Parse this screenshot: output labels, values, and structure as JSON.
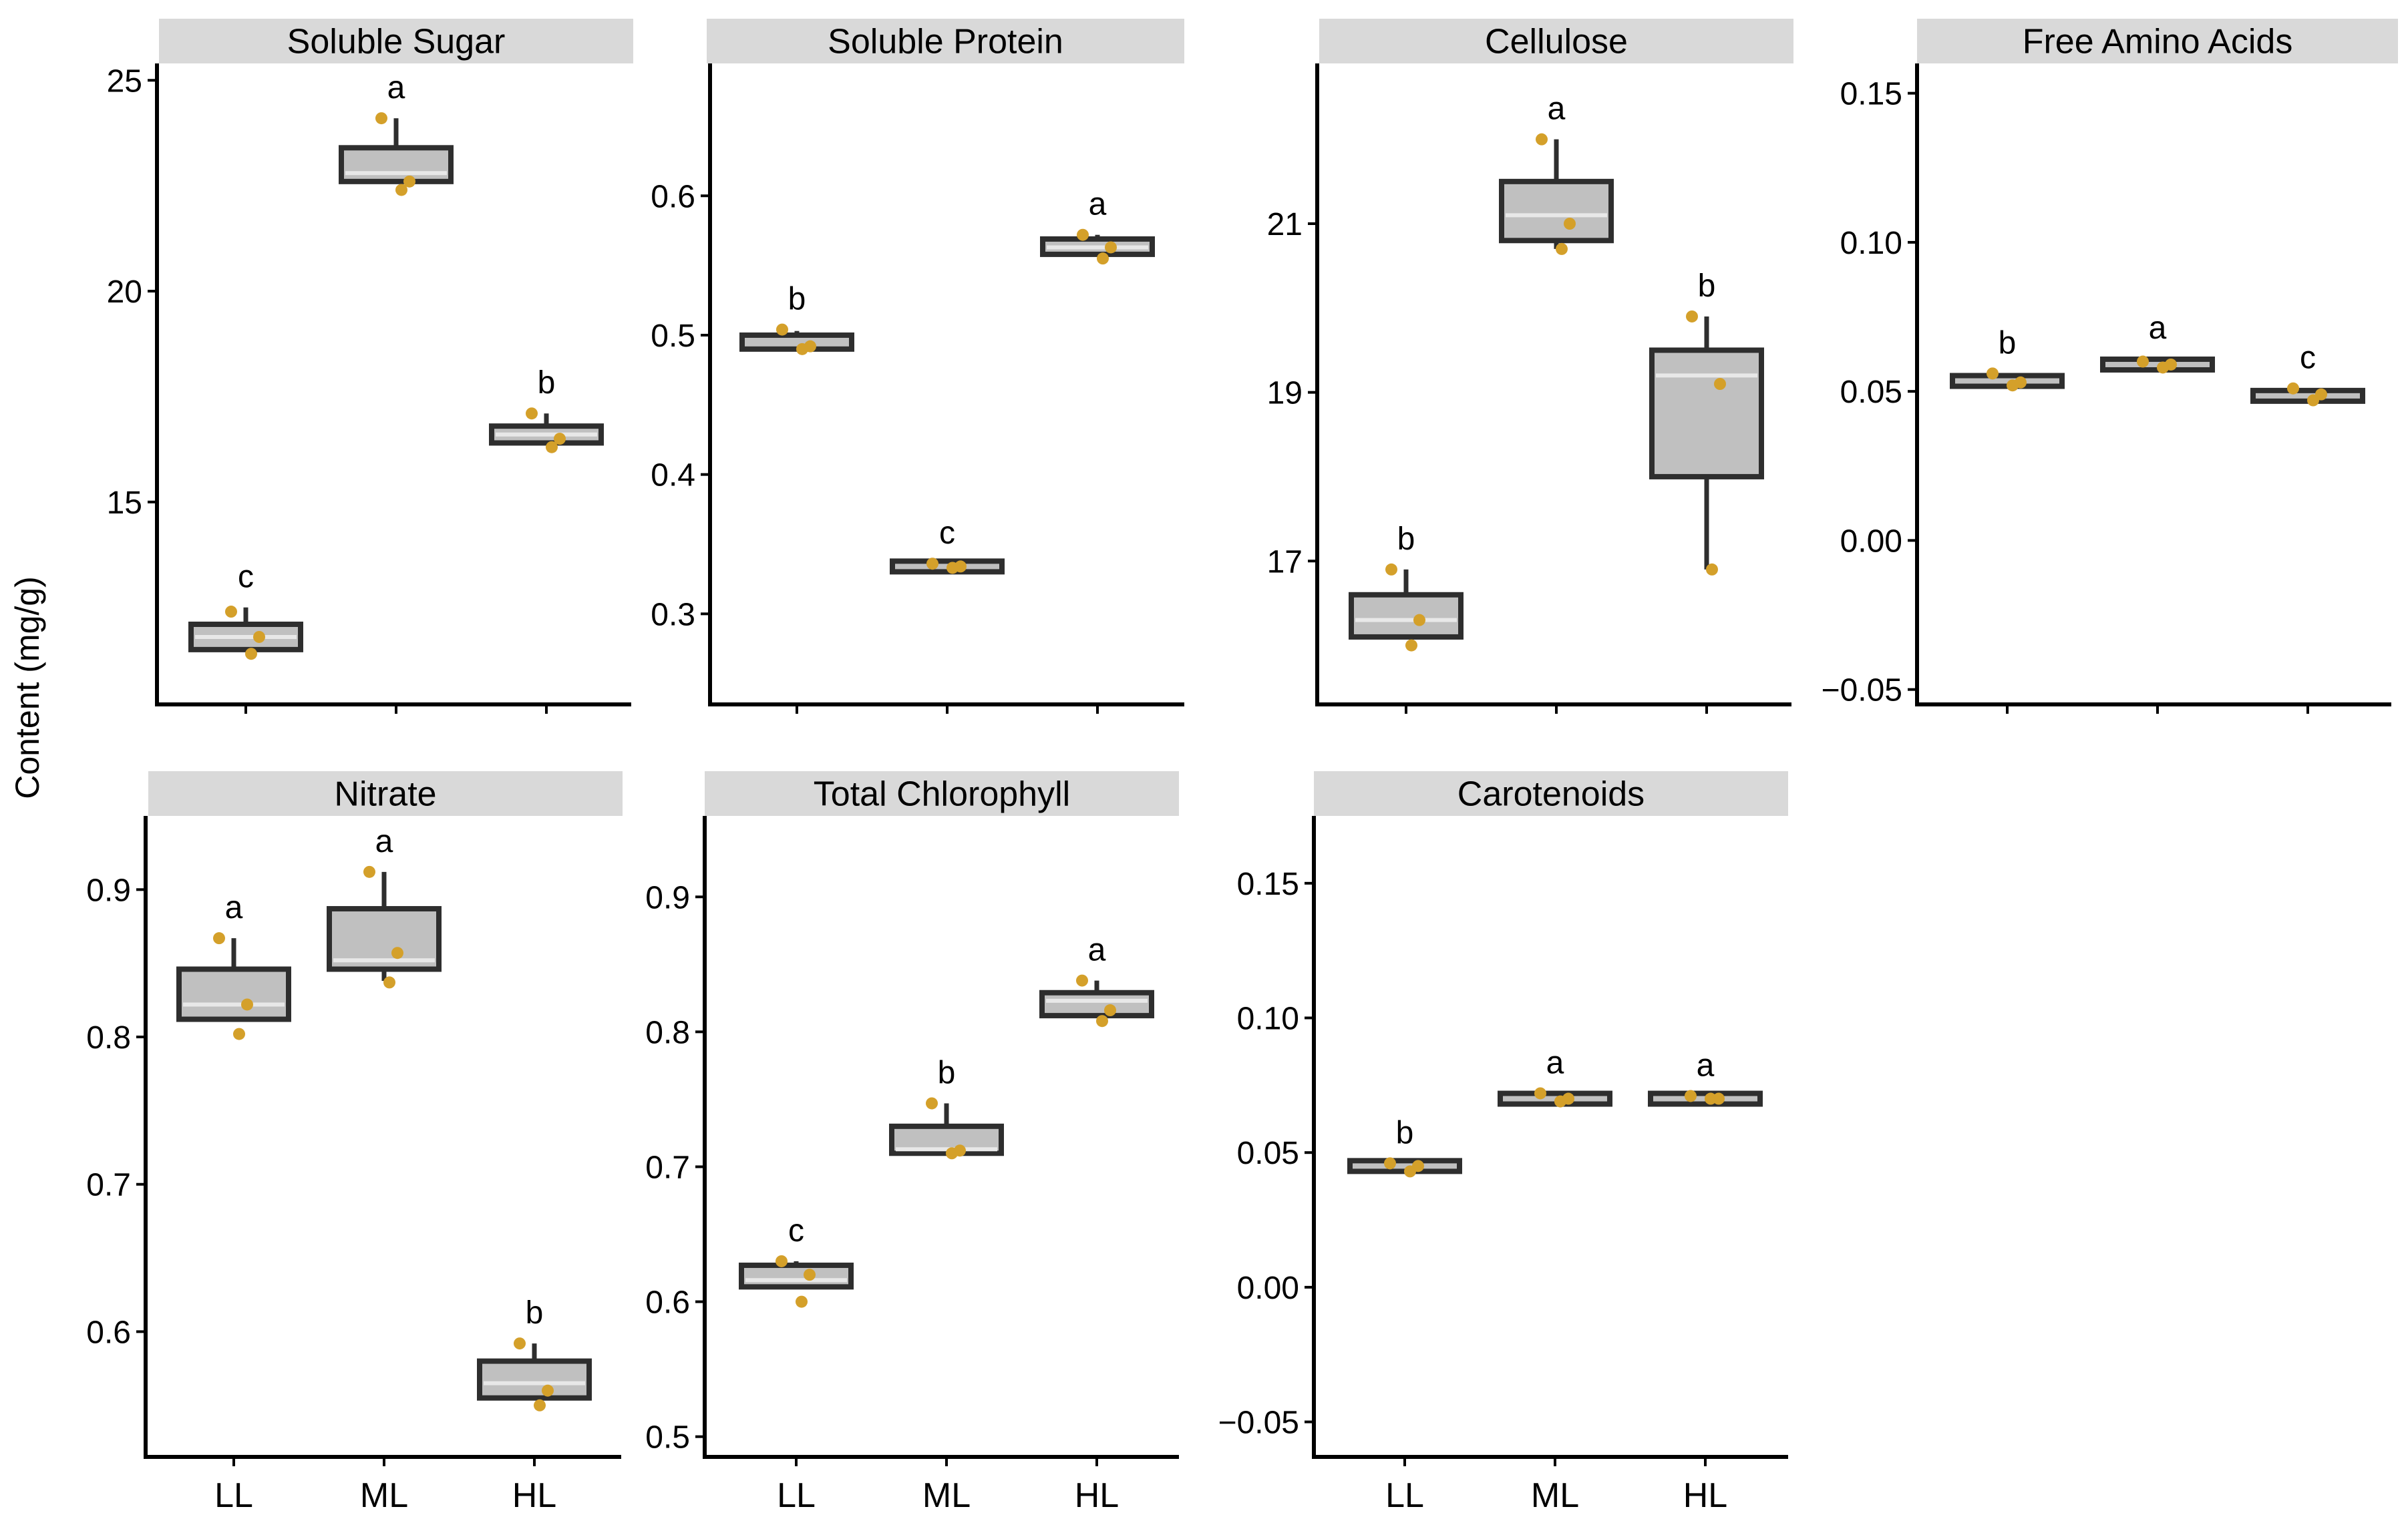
{
  "figure": {
    "y_axis_label": "Content (mg/g)",
    "colors": {
      "box_fill": "#c0c0c0",
      "box_stroke": "#2e2e2e",
      "median": "#e8e8e8",
      "point": "#d4a02a",
      "strip_fill": "#d9d9d9",
      "axis": "#000000"
    }
  },
  "chart_data": [
    {
      "type": "box",
      "title": "Soluble Sugar",
      "categories": [
        "LL",
        "ML",
        "HL"
      ],
      "show_x_labels": false,
      "y_ticks": [
        15,
        20,
        25
      ],
      "y_tick_labels": [
        "15",
        "20",
        "25"
      ],
      "ylim": [
        10.2,
        25.4
      ],
      "boxes": [
        {
          "category": "LL",
          "q1": 11.5,
          "median": 11.8,
          "q3": 12.1,
          "whisker_low": 11.5,
          "whisker_high": 12.5,
          "points": [
            12.4,
            11.8,
            11.4
          ],
          "letter": "c"
        },
        {
          "category": "ML",
          "q1": 22.6,
          "median": 22.8,
          "q3": 23.4,
          "whisker_low": 22.6,
          "whisker_high": 24.1,
          "points": [
            24.1,
            22.6,
            22.4
          ],
          "letter": "a"
        },
        {
          "category": "HL",
          "q1": 16.4,
          "median": 16.6,
          "q3": 16.8,
          "whisker_low": 16.4,
          "whisker_high": 17.1,
          "points": [
            17.1,
            16.5,
            16.3
          ],
          "letter": "b"
        }
      ]
    },
    {
      "type": "box",
      "title": "Soluble Protein",
      "categories": [
        "LL",
        "ML",
        "HL"
      ],
      "show_x_labels": false,
      "y_ticks": [
        0.3,
        0.4,
        0.5,
        0.6
      ],
      "y_tick_labels": [
        "0.3",
        "0.4",
        "0.5",
        "0.6"
      ],
      "ylim": [
        0.235,
        0.695
      ],
      "boxes": [
        {
          "category": "LL",
          "q1": 0.49,
          "median": 0.493,
          "q3": 0.5,
          "whisker_low": 0.49,
          "whisker_high": 0.503,
          "points": [
            0.504,
            0.492,
            0.49
          ],
          "letter": "b"
        },
        {
          "category": "ML",
          "q1": 0.332,
          "median": 0.334,
          "q3": 0.336,
          "whisker_low": 0.332,
          "whisker_high": 0.336,
          "points": [
            0.336,
            0.334,
            0.333
          ],
          "letter": "c"
        },
        {
          "category": "HL",
          "q1": 0.558,
          "median": 0.563,
          "q3": 0.569,
          "whisker_low": 0.558,
          "whisker_high": 0.572,
          "points": [
            0.572,
            0.563,
            0.555
          ],
          "letter": "a"
        }
      ]
    },
    {
      "type": "box",
      "title": "Cellulose",
      "categories": [
        "LL",
        "ML",
        "HL"
      ],
      "show_x_labels": false,
      "y_ticks": [
        17,
        19,
        21
      ],
      "y_tick_labels": [
        "17",
        "19",
        "21"
      ],
      "ylim": [
        15.3,
        22.9
      ],
      "boxes": [
        {
          "category": "LL",
          "q1": 16.1,
          "median": 16.3,
          "q3": 16.6,
          "whisker_low": 16.1,
          "whisker_high": 16.9,
          "points": [
            16.9,
            16.3,
            16.0
          ],
          "letter": "b"
        },
        {
          "category": "ML",
          "q1": 20.8,
          "median": 21.1,
          "q3": 21.5,
          "whisker_low": 20.7,
          "whisker_high": 22.0,
          "points": [
            22.0,
            21.0,
            20.7
          ],
          "letter": "a"
        },
        {
          "category": "HL",
          "q1": 18.0,
          "median": 19.2,
          "q3": 19.5,
          "whisker_low": 16.9,
          "whisker_high": 19.9,
          "points": [
            19.9,
            19.1,
            16.9
          ],
          "letter": "b"
        }
      ]
    },
    {
      "type": "box",
      "title": "Free Amino Acids",
      "categories": [
        "LL",
        "ML",
        "HL"
      ],
      "show_x_labels": false,
      "y_ticks": [
        -0.05,
        0.0,
        0.05,
        0.1,
        0.15
      ],
      "y_tick_labels": [
        "−0.05",
        "0.00",
        "0.05",
        "0.10",
        "0.15"
      ],
      "ylim": [
        -0.055,
        0.16
      ],
      "boxes": [
        {
          "category": "LL",
          "q1": 0.052,
          "median": 0.053,
          "q3": 0.055,
          "whisker_low": 0.052,
          "whisker_high": 0.056,
          "points": [
            0.056,
            0.053,
            0.052
          ],
          "letter": "b"
        },
        {
          "category": "ML",
          "q1": 0.058,
          "median": 0.059,
          "q3": 0.06,
          "whisker_low": 0.058,
          "whisker_high": 0.061,
          "points": [
            0.06,
            0.059,
            0.058
          ],
          "letter": "a"
        },
        {
          "category": "HL",
          "q1": 0.047,
          "median": 0.048,
          "q3": 0.05,
          "whisker_low": 0.047,
          "whisker_high": 0.051,
          "points": [
            0.051,
            0.049,
            0.047
          ],
          "letter": "c"
        }
      ]
    },
    {
      "type": "box",
      "title": "Nitrate",
      "categories": [
        "LL",
        "ML",
        "HL"
      ],
      "show_x_labels": true,
      "y_ticks": [
        0.6,
        0.7,
        0.8,
        0.9
      ],
      "y_tick_labels": [
        "0.6",
        "0.7",
        "0.8",
        "0.9"
      ],
      "ylim": [
        0.515,
        0.95
      ],
      "boxes": [
        {
          "category": "LL",
          "q1": 0.812,
          "median": 0.822,
          "q3": 0.846,
          "whisker_low": 0.812,
          "whisker_high": 0.867,
          "points": [
            0.867,
            0.822,
            0.802
          ],
          "letter": "a"
        },
        {
          "category": "ML",
          "q1": 0.846,
          "median": 0.852,
          "q3": 0.887,
          "whisker_low": 0.838,
          "whisker_high": 0.912,
          "points": [
            0.912,
            0.857,
            0.837
          ],
          "letter": "a"
        },
        {
          "category": "HL",
          "q1": 0.555,
          "median": 0.565,
          "q3": 0.58,
          "whisker_low": 0.555,
          "whisker_high": 0.592,
          "points": [
            0.592,
            0.56,
            0.55
          ],
          "letter": "b"
        }
      ]
    },
    {
      "type": "box",
      "title": "Total Chlorophyll",
      "categories": [
        "LL",
        "ML",
        "HL"
      ],
      "show_x_labels": true,
      "y_ticks": [
        0.5,
        0.6,
        0.7,
        0.8,
        0.9
      ],
      "y_tick_labels": [
        "0.5",
        "0.6",
        "0.7",
        "0.8",
        "0.9"
      ],
      "ylim": [
        0.485,
        0.96
      ],
      "boxes": [
        {
          "category": "LL",
          "q1": 0.611,
          "median": 0.616,
          "q3": 0.627,
          "whisker_low": 0.611,
          "whisker_high": 0.63,
          "points": [
            0.63,
            0.62,
            0.6
          ],
          "letter": "c"
        },
        {
          "category": "ML",
          "q1": 0.71,
          "median": 0.713,
          "q3": 0.73,
          "whisker_low": 0.71,
          "whisker_high": 0.747,
          "points": [
            0.747,
            0.712,
            0.71
          ],
          "letter": "b"
        },
        {
          "category": "HL",
          "q1": 0.812,
          "median": 0.823,
          "q3": 0.829,
          "whisker_low": 0.812,
          "whisker_high": 0.838,
          "points": [
            0.838,
            0.816,
            0.808
          ],
          "letter": "a"
        }
      ]
    },
    {
      "type": "box",
      "title": "Carotenoids",
      "categories": [
        "LL",
        "ML",
        "HL"
      ],
      "show_x_labels": true,
      "y_ticks": [
        -0.05,
        0.0,
        0.05,
        0.1,
        0.15
      ],
      "y_tick_labels": [
        "−0.05",
        "0.00",
        "0.05",
        "0.10",
        "0.15"
      ],
      "ylim": [
        -0.063,
        0.175
      ],
      "boxes": [
        {
          "category": "LL",
          "q1": 0.044,
          "median": 0.045,
          "q3": 0.046,
          "whisker_low": 0.044,
          "whisker_high": 0.046,
          "points": [
            0.046,
            0.045,
            0.043
          ],
          "letter": "b"
        },
        {
          "category": "ML",
          "q1": 0.069,
          "median": 0.07,
          "q3": 0.071,
          "whisker_low": 0.069,
          "whisker_high": 0.072,
          "points": [
            0.072,
            0.07,
            0.069
          ],
          "letter": "a"
        },
        {
          "category": "HL",
          "q1": 0.069,
          "median": 0.07,
          "q3": 0.071,
          "whisker_low": 0.069,
          "whisker_high": 0.071,
          "points": [
            0.071,
            0.07,
            0.07
          ],
          "letter": "a"
        }
      ]
    }
  ]
}
